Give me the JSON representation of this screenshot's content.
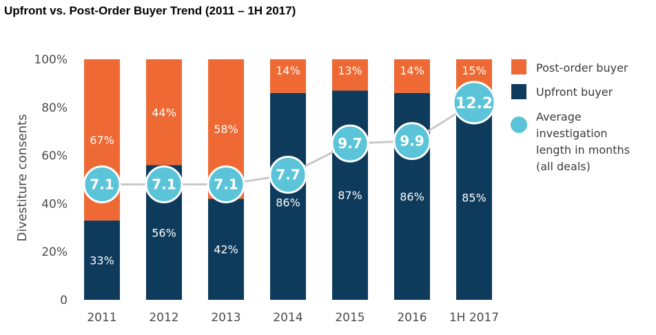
{
  "title": "Upfront vs. Post-Order Buyer Trend (2011 – 1H 2017)",
  "chart_data": {
    "type": "bar",
    "stacked": true,
    "categories": [
      "2011",
      "2012",
      "2013",
      "2014",
      "2015",
      "2016",
      "1H 2017"
    ],
    "series": [
      {
        "name": "Upfront buyer",
        "color": "#0e3a5b",
        "values": [
          33,
          56,
          42,
          86,
          87,
          86,
          85
        ],
        "labels": [
          "33%",
          "56%",
          "42%",
          "86%",
          "87%",
          "86%",
          "85%"
        ]
      },
      {
        "name": "Post-order buyer",
        "color": "#ee6934",
        "values": [
          67,
          44,
          58,
          14,
          13,
          14,
          15
        ],
        "labels": [
          "67%",
          "44%",
          "58%",
          "14%",
          "13%",
          "14%",
          "15%"
        ]
      }
    ],
    "line_series": {
      "name": "Average investigation length in months (all deals)",
      "legend_lines": [
        "Average",
        "investigation",
        "length in months",
        "(all deals)"
      ],
      "color": "#5bc4d8",
      "values": [
        7.1,
        7.1,
        7.1,
        7.7,
        9.7,
        9.9,
        12.2
      ],
      "labels": [
        "7.1",
        "7.1",
        "7.1",
        "7.7",
        "9.7",
        "9.9",
        "12.2"
      ],
      "position_pct": [
        48,
        48,
        48,
        52,
        65,
        66,
        82
      ]
    },
    "ylabel": "Divestiture consents",
    "ylim": [
      0,
      100
    ],
    "yticks": [
      0,
      20,
      40,
      60,
      80,
      100
    ],
    "ytick_labels": [
      "0",
      "20%",
      "40%",
      "60%",
      "80%",
      "100%"
    ],
    "grid": false,
    "legend_position": "right"
  }
}
